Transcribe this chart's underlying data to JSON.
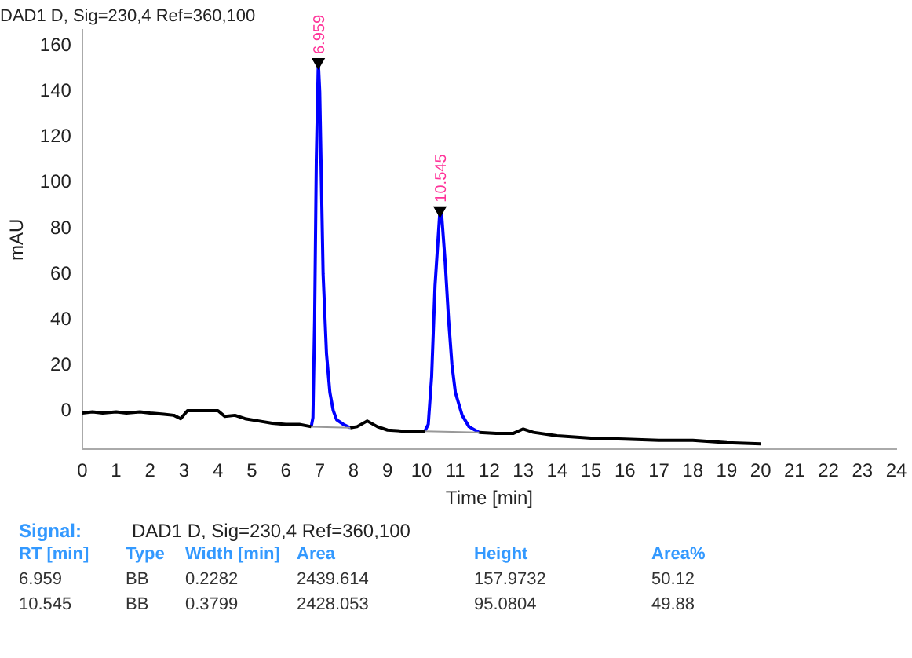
{
  "chart_data": {
    "type": "line",
    "title": "DAD1 D, Sig=230,4 Ref=360,100",
    "xlabel": "Time [min]",
    "ylabel": "mAU",
    "xlim": [
      0,
      24
    ],
    "xticks": [
      0,
      1,
      2,
      3,
      4,
      5,
      6,
      7,
      8,
      9,
      10,
      11,
      12,
      13,
      14,
      15,
      16,
      17,
      18,
      19,
      20,
      21,
      22,
      23,
      24
    ],
    "ylim": [
      -17,
      167
    ],
    "yticks": [
      0,
      20,
      40,
      60,
      80,
      100,
      120,
      140,
      160
    ],
    "grid": false,
    "legend": false,
    "marker": "none",
    "line_style": "solid",
    "series": [
      {
        "color": "#000000",
        "x": [
          0,
          0.3,
          0.6,
          1,
          1.3,
          1.7,
          2,
          2.4,
          2.7,
          2.9,
          3.1,
          3.5,
          4.0,
          4.2,
          4.5,
          4.8,
          5.2,
          5.6,
          6.0,
          6.4,
          6.75,
          7.3,
          7.9,
          8.1,
          8.4,
          8.7,
          9.0,
          9.5,
          10.1,
          10.5,
          11.7,
          12.2,
          12.7,
          13.0,
          13.3,
          14,
          15,
          16,
          17,
          18,
          19,
          20
        ],
        "values": [
          -1,
          -0.5,
          -1,
          -0.5,
          -1,
          -0.5,
          -1,
          -1.5,
          -2,
          -3.5,
          0,
          0,
          0,
          -2.5,
          -2,
          -3.5,
          -4.5,
          -5.5,
          -6,
          -6,
          -7,
          null,
          -7.5,
          -7,
          -4.5,
          -7,
          -8.5,
          -9,
          -9,
          null,
          -9.5,
          -10,
          -10,
          -8,
          -9.5,
          -11,
          -12,
          -12.5,
          -13,
          -13,
          -14,
          -14.5
        ]
      },
      {
        "color": "#999999",
        "x": [
          6.75,
          7.9,
          9,
          10.1,
          11.7
        ],
        "values": [
          -7,
          -7.5,
          null,
          -9,
          -9.5
        ]
      },
      {
        "color": "#0000ff",
        "x": [
          6.75,
          6.8,
          6.85,
          6.9,
          6.959,
          7.0,
          7.05,
          7.1,
          7.2,
          7.3,
          7.4,
          7.5,
          7.7,
          7.9,
          9,
          10.1,
          10.2,
          10.3,
          10.4,
          10.545,
          10.6,
          10.7,
          10.8,
          10.9,
          11.0,
          11.2,
          11.4,
          11.7
        ],
        "values": [
          -7,
          -3,
          40,
          110,
          153,
          140,
          100,
          60,
          25,
          8,
          0,
          -4,
          -6,
          -7.5,
          null,
          -9,
          -6,
          15,
          55,
          88,
          85,
          65,
          40,
          20,
          8,
          -2,
          -7,
          -9.5
        ]
      },
      {
        "type": "scatter",
        "marker": "triangle",
        "color": "#000000",
        "x": [
          6.959,
          10.545
        ],
        "values": [
          153,
          88
        ]
      }
    ],
    "annotations": [
      {
        "text": "6.959",
        "x": 6.959,
        "y": 153
      },
      {
        "text": "10.545",
        "x": 10.545,
        "y": 88
      },
      "Signal:",
      "DAD1 D, Sig=230,4 Ref=360,100",
      "RT [min]",
      "Type",
      "Width [min]",
      "Area",
      "Height",
      "Area%",
      "6.959",
      "BB",
      "0.2282",
      "2439.614",
      "157.9732",
      "50.12",
      "10.545",
      "BB",
      "0.3799",
      "2428.053",
      "95.0804",
      "49.88"
    ]
  }
}
